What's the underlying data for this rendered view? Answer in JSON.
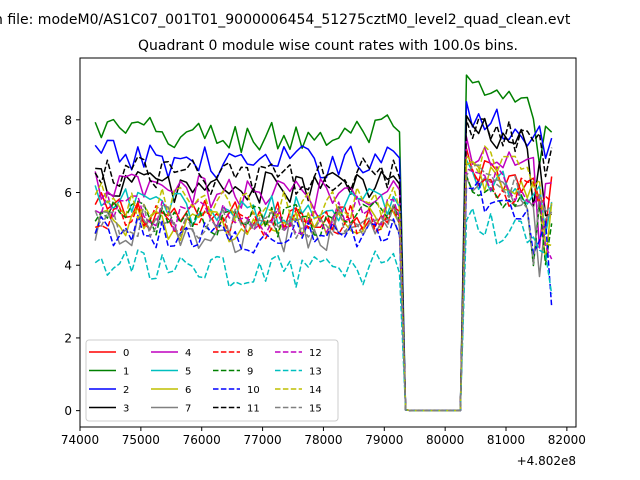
{
  "chart_data": {
    "type": "line",
    "suptitle": "n file: modeM0/AS1C07_001T01_9000006454_51275cztM0_level2_quad_clean.evt",
    "title": "Quadrant 0 module wise count rates with 100.0s bins.",
    "xlabel": "",
    "ylabel": "",
    "x_offset_label": "+4.802e8",
    "xlim": [
      74000,
      82150
    ],
    "ylim": [
      -0.45,
      9.7
    ],
    "x_ticks": [
      74000,
      75000,
      76000,
      77000,
      78000,
      79000,
      80000,
      81000,
      82000
    ],
    "x_tick_labels": [
      "74000",
      "75000",
      "76000",
      "77000",
      "78000",
      "79000",
      "80000",
      "81000",
      "82000"
    ],
    "y_ticks": [
      0,
      2,
      4,
      6,
      8
    ],
    "y_tick_labels": [
      "0",
      "2",
      "4",
      "6",
      "8"
    ],
    "grid": false,
    "legend": "lower-left",
    "time_bins": {
      "start": 74250,
      "end": 81750,
      "step": 100
    },
    "gap": {
      "drop_start": 79300,
      "zero_from": 79400,
      "zero_to": 80300,
      "rise": 80400
    },
    "series": [
      {
        "name": "0",
        "color": "#ff0000",
        "dash": "solid",
        "base": 5.55,
        "post": 6.75
      },
      {
        "name": "1",
        "color": "#008000",
        "dash": "solid",
        "base": 7.75,
        "post": 8.8
      },
      {
        "name": "2",
        "color": "#0000ff",
        "dash": "solid",
        "base": 7.05,
        "post": 8.1
      },
      {
        "name": "3",
        "color": "#000000",
        "dash": "solid",
        "base": 6.35,
        "post": 7.75
      },
      {
        "name": "4",
        "color": "#bf00bf",
        "dash": "solid",
        "base": 6.2,
        "post": 7.2
      },
      {
        "name": "5",
        "color": "#00bfbf",
        "dash": "solid",
        "base": 5.75,
        "post": 6.6
      },
      {
        "name": "6",
        "color": "#bfbf00",
        "dash": "solid",
        "base": 5.3,
        "post": 6.5
      },
      {
        "name": "7",
        "color": "#808080",
        "dash": "solid",
        "base": 5.05,
        "post": 6.2
      },
      {
        "name": "8",
        "color": "#ff0000",
        "dash": "dashed",
        "base": 5.35,
        "post": 6.4
      },
      {
        "name": "9",
        "color": "#008000",
        "dash": "dashed",
        "base": 5.45,
        "post": 6.3
      },
      {
        "name": "10",
        "color": "#0000ff",
        "dash": "dashed",
        "base": 5.05,
        "post": 6.0
      },
      {
        "name": "11",
        "color": "#000000",
        "dash": "dashed",
        "base": 6.65,
        "post": 7.9
      },
      {
        "name": "12",
        "color": "#bf00bf",
        "dash": "dashed",
        "base": 5.55,
        "post": 6.6
      },
      {
        "name": "13",
        "color": "#00bfbf",
        "dash": "dashed",
        "base": 4.05,
        "post": 5.2
      },
      {
        "name": "14",
        "color": "#bfbf00",
        "dash": "dashed",
        "base": 5.85,
        "post": 7.0
      },
      {
        "name": "15",
        "color": "#808080",
        "dash": "dashed",
        "base": 5.35,
        "post": 6.5
      }
    ]
  }
}
